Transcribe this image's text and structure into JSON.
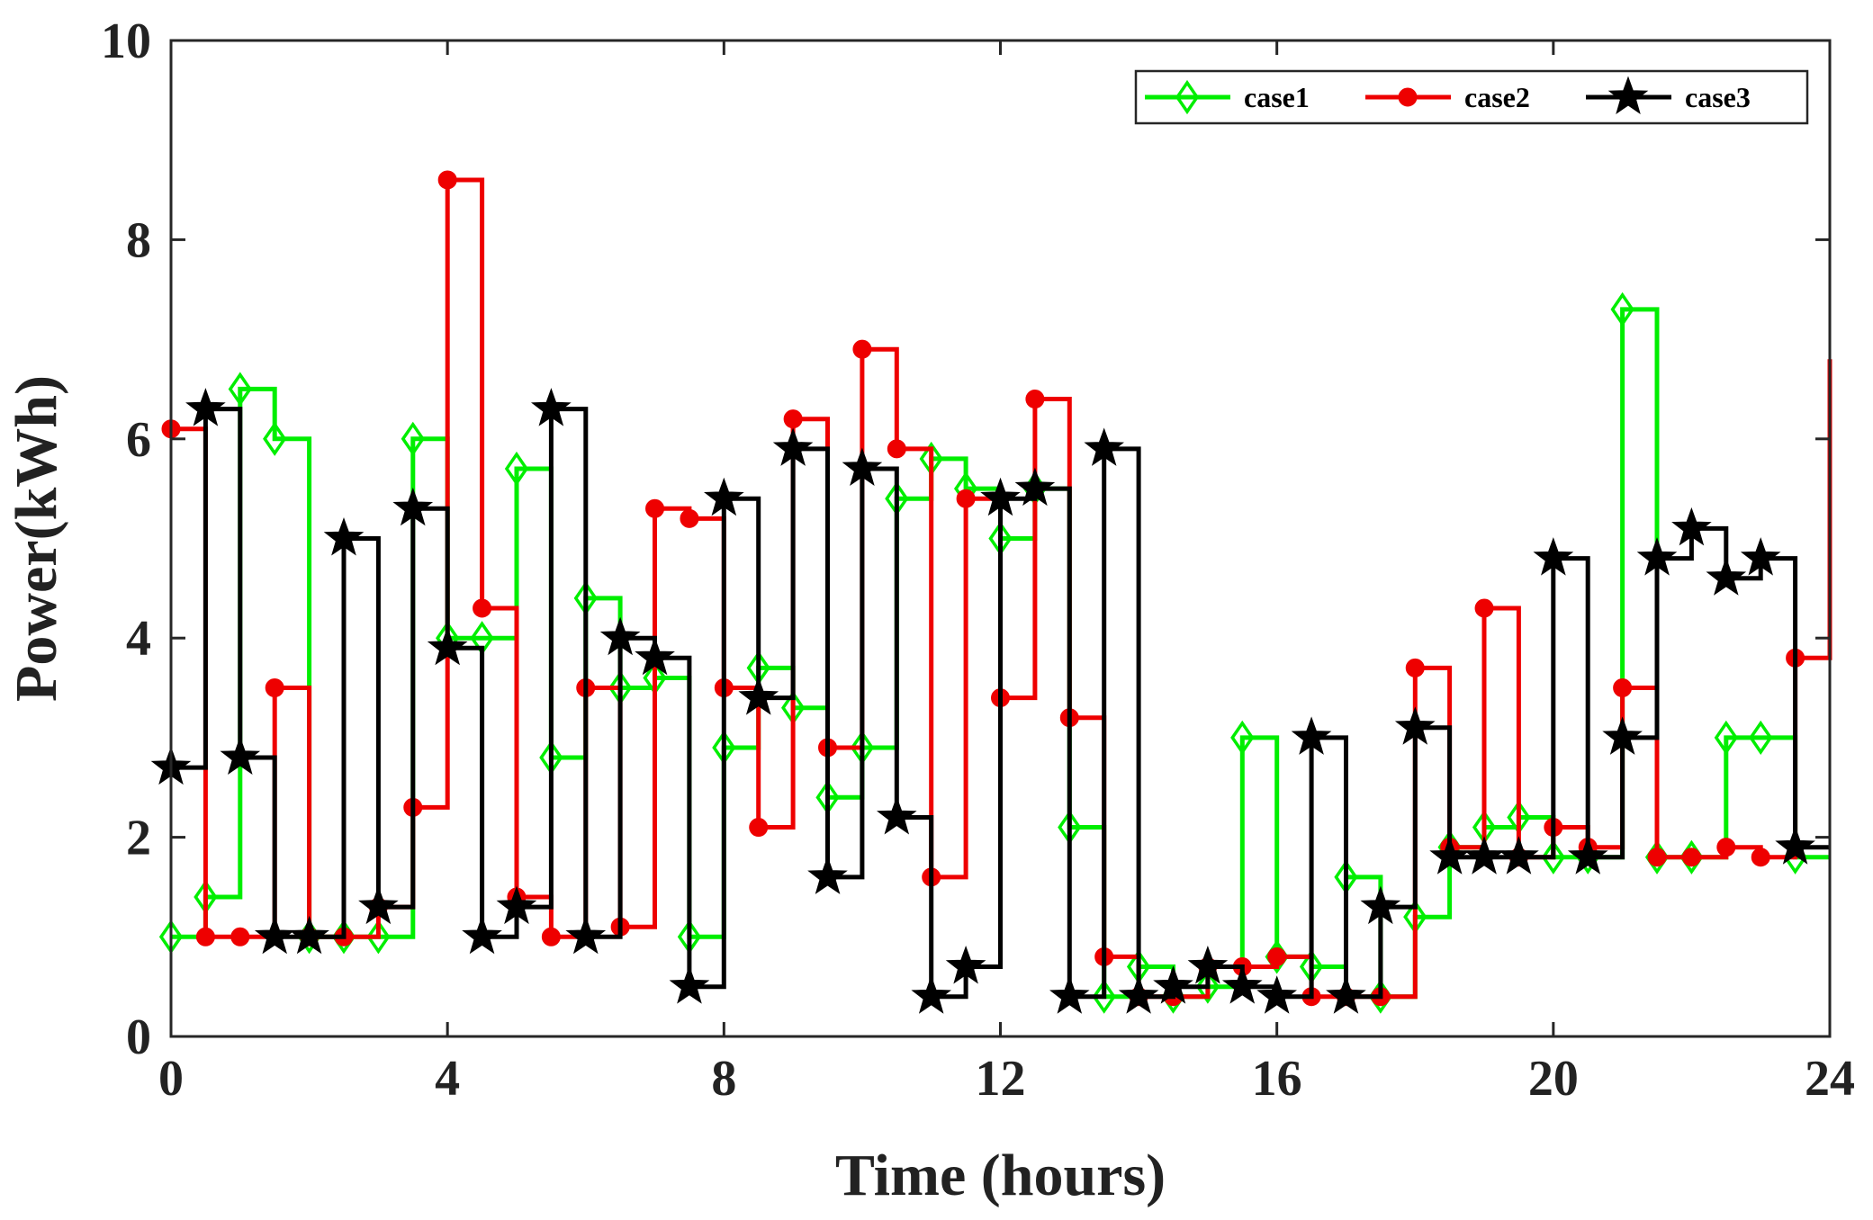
{
  "chart_data": {
    "type": "line",
    "step": true,
    "xlabel": "Time (hours)",
    "ylabel": "Power(kWh)",
    "xlim": [
      0,
      24
    ],
    "ylim": [
      0,
      10
    ],
    "xticks": [
      0,
      4,
      8,
      12,
      16,
      20,
      24
    ],
    "yticks": [
      0,
      2,
      4,
      6,
      8,
      10
    ],
    "legend_position": "top-right",
    "series": [
      {
        "name": "case1",
        "color": "#00ee00",
        "marker": "diamond",
        "x": [
          0,
          0.5,
          1,
          1.5,
          2,
          2.5,
          3,
          3.5,
          4,
          4.5,
          5,
          5.5,
          6,
          6.5,
          7,
          7.5,
          8,
          8.5,
          9,
          9.5,
          10,
          10.5,
          11,
          11.5,
          12,
          12.5,
          13,
          13.5,
          14,
          14.5,
          15,
          15.5,
          16,
          16.5,
          17,
          17.5,
          18,
          18.5,
          19,
          19.5,
          20,
          20.5,
          21,
          21.5,
          22,
          22.5,
          23,
          23.5,
          24
        ],
        "values": [
          1.0,
          1.4,
          6.5,
          6.0,
          1.0,
          1.0,
          1.0,
          6.0,
          4.0,
          4.0,
          5.7,
          2.8,
          4.4,
          3.5,
          3.6,
          1.0,
          2.9,
          3.7,
          3.3,
          2.4,
          2.9,
          5.4,
          5.8,
          5.5,
          5.0,
          5.5,
          2.1,
          0.4,
          0.7,
          0.4,
          0.5,
          3.0,
          0.8,
          0.7,
          1.6,
          0.4,
          1.2,
          1.9,
          2.1,
          2.2,
          1.8,
          1.8,
          7.3,
          1.8,
          1.8,
          3.0,
          3.0,
          1.8,
          1.8
        ]
      },
      {
        "name": "case2",
        "color": "#ee0000",
        "marker": "circle",
        "x": [
          0,
          0.5,
          1,
          1.5,
          2,
          2.5,
          3,
          3.5,
          4,
          4.5,
          5,
          5.5,
          6,
          6.5,
          7,
          7.5,
          8,
          8.5,
          9,
          9.5,
          10,
          10.5,
          11,
          11.5,
          12,
          12.5,
          13,
          13.5,
          14,
          14.5,
          15,
          15.5,
          16,
          16.5,
          17,
          17.5,
          18,
          18.5,
          19,
          19.5,
          20,
          20.5,
          21,
          21.5,
          22,
          22.5,
          23,
          23.5,
          24
        ],
        "values": [
          6.1,
          1.0,
          1.0,
          3.5,
          1.0,
          1.0,
          1.3,
          2.3,
          8.6,
          4.3,
          1.4,
          1.0,
          3.5,
          1.1,
          5.3,
          5.2,
          3.5,
          2.1,
          6.2,
          2.9,
          6.9,
          5.9,
          1.6,
          5.4,
          3.4,
          6.4,
          3.2,
          0.8,
          0.4,
          0.4,
          0.7,
          0.7,
          0.8,
          0.4,
          0.4,
          0.4,
          3.7,
          1.9,
          4.3,
          1.8,
          2.1,
          1.9,
          3.5,
          1.8,
          1.8,
          1.9,
          1.8,
          3.8,
          6.8
        ]
      },
      {
        "name": "case3",
        "color": "#000000",
        "marker": "star",
        "x": [
          0,
          0.5,
          1,
          1.5,
          2,
          2.5,
          3,
          3.5,
          4,
          4.5,
          5,
          5.5,
          6,
          6.5,
          7,
          7.5,
          8,
          8.5,
          9,
          9.5,
          10,
          10.5,
          11,
          11.5,
          12,
          12.5,
          13,
          13.5,
          14,
          14.5,
          15,
          15.5,
          16,
          16.5,
          17,
          17.5,
          18,
          18.5,
          19,
          19.5,
          20,
          20.5,
          21,
          21.5,
          22,
          22.5,
          23,
          23.5,
          24
        ],
        "values": [
          2.7,
          6.3,
          2.8,
          1.0,
          1.0,
          5.0,
          1.3,
          5.3,
          3.9,
          1.0,
          1.3,
          6.3,
          1.0,
          4.0,
          3.8,
          0.5,
          5.4,
          3.4,
          5.9,
          1.6,
          5.7,
          2.2,
          0.4,
          0.7,
          5.4,
          5.5,
          0.4,
          5.9,
          0.4,
          0.5,
          0.7,
          0.5,
          0.4,
          3.0,
          0.4,
          1.3,
          3.1,
          1.8,
          1.8,
          1.8,
          4.8,
          1.8,
          3.0,
          4.8,
          5.1,
          4.6,
          4.8,
          1.9,
          1.9
        ]
      }
    ]
  }
}
